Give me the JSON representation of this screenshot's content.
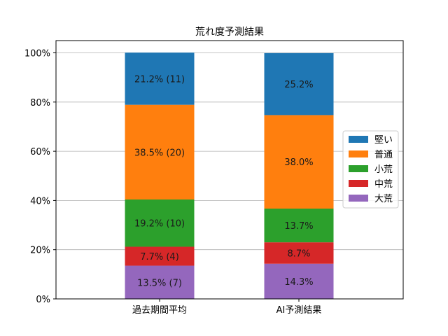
{
  "chart_data": {
    "type": "bar",
    "stacked": true,
    "title": "荒れ度予測結果",
    "categories": [
      "過去期間平均",
      "AI予測結果"
    ],
    "series": [
      {
        "name": "大荒",
        "color": "#9467bd",
        "values": [
          13.5,
          14.3
        ],
        "labels": [
          "13.5% (7)",
          "14.3%"
        ]
      },
      {
        "name": "中荒",
        "color": "#d62728",
        "values": [
          7.7,
          8.7
        ],
        "labels": [
          "7.7% (4)",
          "8.7%"
        ]
      },
      {
        "name": "小荒",
        "color": "#2ca02c",
        "values": [
          19.2,
          13.7
        ],
        "labels": [
          "19.2% (10)",
          "13.7%"
        ]
      },
      {
        "name": "普通",
        "color": "#ff7f0e",
        "values": [
          38.5,
          38.0
        ],
        "labels": [
          "38.5% (20)",
          "38.0%"
        ]
      },
      {
        "name": "堅い",
        "color": "#1f77b4",
        "values": [
          21.2,
          25.2
        ],
        "labels": [
          "21.2% (11)",
          "25.2%"
        ]
      }
    ],
    "yticks": [
      "0%",
      "20%",
      "40%",
      "60%",
      "80%",
      "100%"
    ],
    "ylim": [
      0,
      100
    ],
    "grid": "horizontal",
    "legend": {
      "placement": "right",
      "order": [
        "堅い",
        "普通",
        "小荒",
        "中荒",
        "大荒"
      ]
    }
  }
}
